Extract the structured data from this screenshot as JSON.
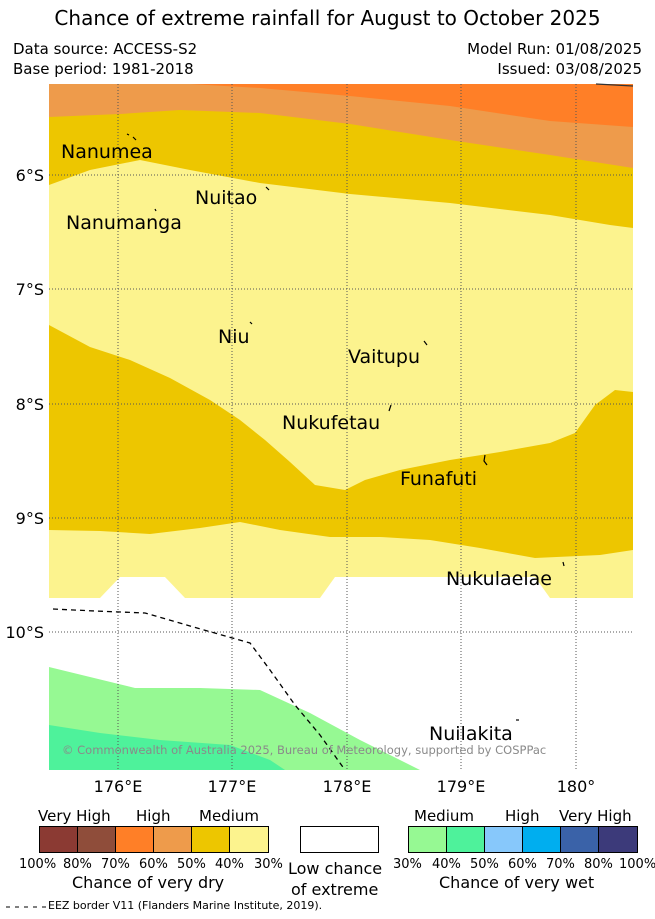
{
  "header": {
    "title": "Chance of extreme rainfall for August to October 2025",
    "data_source": "Data source: ACCESS-S2",
    "base_period": "Base period: 1981-2018",
    "model_run": "Model Run: 01/08/2025",
    "issued": "Issued: 03/08/2025"
  },
  "map": {
    "lat_labels": [
      "6°S",
      "7°S",
      "8°S",
      "9°S",
      "10°S"
    ],
    "lon_labels": [
      "176°E",
      "177°E",
      "178°E",
      "179°E",
      "180°"
    ],
    "islands": [
      {
        "name": "Nanumea"
      },
      {
        "name": "Nuitao"
      },
      {
        "name": "Nanumanga"
      },
      {
        "name": "Niu"
      },
      {
        "name": "Vaitupu"
      },
      {
        "name": "Nukufetau"
      },
      {
        "name": "Funafuti"
      },
      {
        "name": "Nukulaelae"
      },
      {
        "name": "Nuilakita"
      }
    ],
    "copyright": "© Commonwealth of Australia 2025, Bureau of Meteorology, supported by COSPPac",
    "zone_colors": {
      "dry_very_high": "#ff7f27",
      "dry_high": "#ee9b4b",
      "dry_medium": "#edc600",
      "dry_low": "#fcf38e",
      "low_chance": "#ffffff",
      "wet_medium_30": "#96f993",
      "wet_medium_40": "#4ef29b"
    }
  },
  "legend_dry": {
    "categories": [
      "Very High",
      "High",
      "Medium"
    ],
    "percentages": [
      "100%",
      "80%",
      "70%",
      "60%",
      "50%",
      "40%",
      "30%"
    ],
    "colors": [
      "#8b3a33",
      "#8f4d3a",
      "#ff7f27",
      "#ee9b4b",
      "#edc600",
      "#fcf38e"
    ],
    "label": "Chance of very dry"
  },
  "legend_mid": {
    "line1": "Low chance",
    "line2": "of extreme",
    "color": "#ffffff"
  },
  "legend_wet": {
    "categories": [
      "Medium",
      "High",
      "Very High"
    ],
    "percentages": [
      "30%",
      "40%",
      "50%",
      "60%",
      "70%",
      "80%",
      "100%"
    ],
    "colors": [
      "#96f993",
      "#4ef29b",
      "#87c8fb",
      "#00aeef",
      "#3a62a8",
      "#3c3a7a"
    ],
    "label": "Chance of very wet"
  },
  "footer": {
    "eez_note": "EEZ border V11 (Flanders Marine Institute, 2019)."
  }
}
